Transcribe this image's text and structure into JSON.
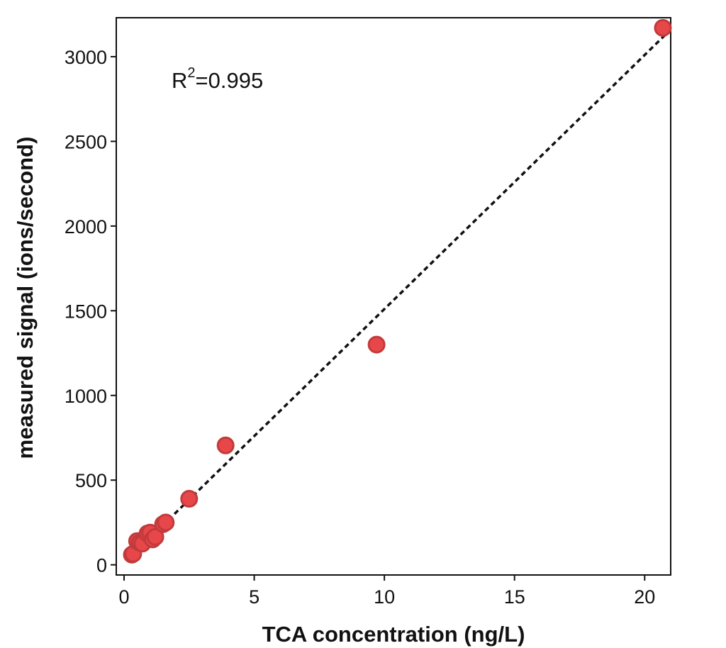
{
  "chart_data": {
    "type": "scatter",
    "xlabel": "TCA concentration (ng/L)",
    "ylabel": "measured signal (ions/second)",
    "xlim": [
      -0.3,
      21
    ],
    "ylim": [
      -60,
      3230
    ],
    "x_ticks": [
      0,
      5,
      10,
      15,
      20
    ],
    "y_ticks": [
      0,
      500,
      1000,
      1500,
      2000,
      2500,
      3000
    ],
    "grid": false,
    "legend": "none",
    "annotation": {
      "base": "R",
      "superscript": "2",
      "text": "=0.995"
    },
    "point_color": "#e8474a",
    "point_edge_color": "#c23a3c",
    "fit_color": "#111111",
    "series": [
      {
        "points": [
          [
            0.3,
            60
          ],
          [
            0.35,
            65
          ],
          [
            0.5,
            140
          ],
          [
            0.6,
            130
          ],
          [
            0.7,
            125
          ],
          [
            0.9,
            185
          ],
          [
            1.0,
            190
          ],
          [
            1.1,
            150
          ],
          [
            1.2,
            165
          ],
          [
            1.5,
            240
          ],
          [
            1.6,
            250
          ],
          [
            2.5,
            390
          ],
          [
            3.9,
            705
          ],
          [
            9.7,
            1300
          ],
          [
            20.7,
            3170
          ]
        ]
      }
    ],
    "fit_line": {
      "x": [
        0.3,
        20.8
      ],
      "y": [
        55,
        3130
      ]
    }
  }
}
